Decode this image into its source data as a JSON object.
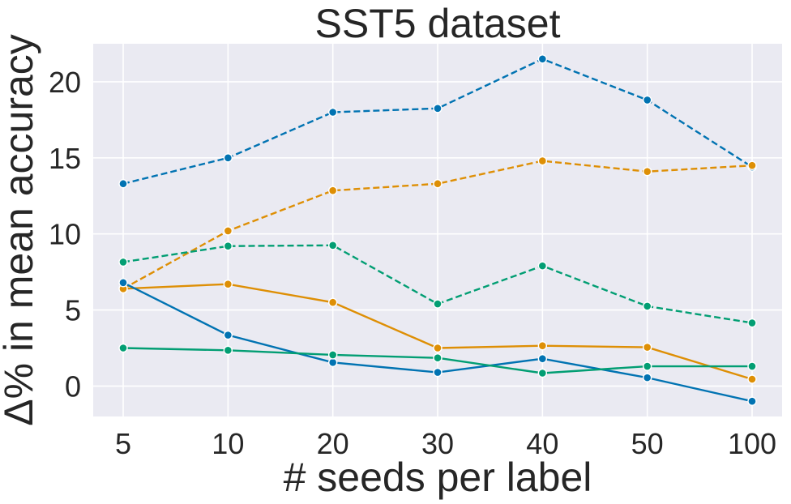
{
  "chart_data": {
    "type": "line",
    "title": "SST5 dataset",
    "xlabel": "# seeds per label",
    "ylabel": "Δ% in mean accuracy",
    "categories": [
      "5",
      "10",
      "20",
      "30",
      "40",
      "50",
      "100"
    ],
    "ylim": [
      -2,
      22.5
    ],
    "yticks": [
      0,
      5,
      10,
      15,
      20
    ],
    "grid": true,
    "legend": "none",
    "series": [
      {
        "color": "#0173b2",
        "dashed": true,
        "values": [
          13.3,
          15.0,
          18.0,
          18.25,
          21.5,
          18.8,
          14.4
        ]
      },
      {
        "color": "#de8f05",
        "dashed": true,
        "values": [
          6.4,
          10.2,
          12.85,
          13.3,
          14.8,
          14.1,
          14.5
        ]
      },
      {
        "color": "#029e73",
        "dashed": true,
        "values": [
          8.15,
          9.2,
          9.25,
          5.4,
          7.9,
          5.25,
          4.15
        ]
      },
      {
        "color": "#de8f05",
        "dashed": false,
        "values": [
          6.4,
          6.7,
          5.5,
          2.5,
          2.65,
          2.55,
          0.45
        ]
      },
      {
        "color": "#0173b2",
        "dashed": false,
        "values": [
          6.8,
          3.35,
          1.55,
          0.9,
          1.8,
          0.55,
          -1.0
        ]
      },
      {
        "color": "#029e73",
        "dashed": false,
        "values": [
          2.5,
          2.35,
          2.05,
          1.85,
          0.85,
          1.3,
          1.3
        ]
      }
    ]
  }
}
